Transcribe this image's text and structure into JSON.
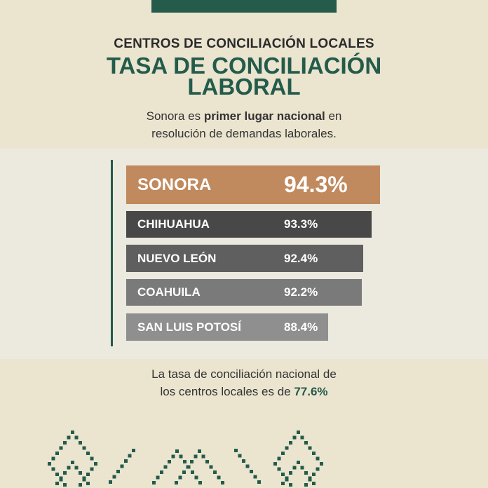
{
  "header": {
    "supertitle": "CENTROS DE CONCILIACIÓN LOCALES",
    "title_line1": "TASA DE CONCILIACIÓN",
    "title_line2": "LABORAL"
  },
  "subtitle": {
    "pre": "Sonora es ",
    "bold": "primer lugar nacional",
    "post": " en",
    "line2": "resolución de demandas laborales."
  },
  "chart_data": {
    "type": "bar",
    "orientation": "horizontal",
    "categories": [
      "SONORA",
      "CHIHUAHUA",
      "NUEVO LEÓN",
      "COAHUILA",
      "SAN LUIS POTOSÍ"
    ],
    "values": [
      94.3,
      93.3,
      92.4,
      92.2,
      88.4
    ],
    "labels": [
      "94.3%",
      "93.3%",
      "92.4%",
      "92.2%",
      "88.4%"
    ],
    "colors": [
      "#c08a5e",
      "#484848",
      "#5f5f5f",
      "#7a7a7a",
      "#8f8f8f"
    ]
  },
  "footer": {
    "line1": "La tasa de conciliación nacional de",
    "line2_pre": "los centros locales es de ",
    "line2_value": "77.6%"
  },
  "colors": {
    "accent": "#245b4b",
    "background": "#ebe5d0"
  }
}
